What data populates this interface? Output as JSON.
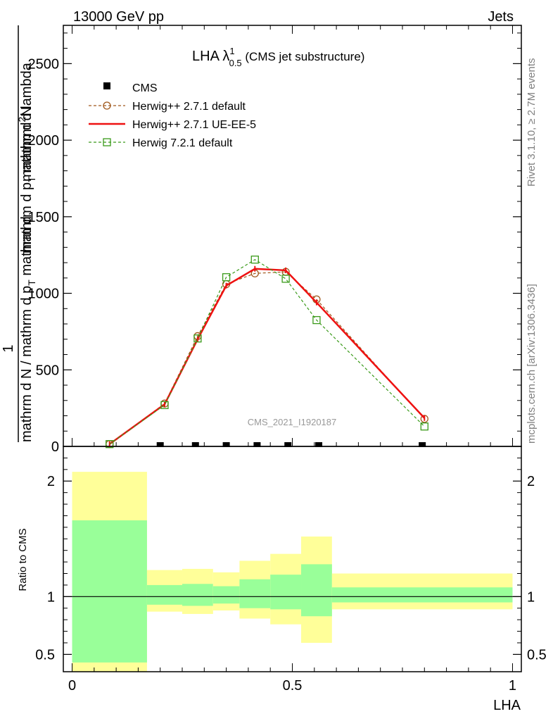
{
  "header": {
    "left": "13000 GeV pp",
    "right": "Jets"
  },
  "side": {
    "rivet": "Rivet 3.1.10, ≥ 2.7M events",
    "mcplots": "mcplots.cern.ch [arXiv:1306.3436]"
  },
  "chart_data": [
    {
      "type": "line",
      "title_main": "LHA λ",
      "title_sup": "1",
      "title_sub": "0.5",
      "title_rest": " (CMS jet substructure)",
      "watermark": "CMS_2021_I1920187",
      "ylabel_top": "1",
      "ylabel_mid": "mathrm d N / mathrm d p",
      "ylabel_mid_sub": "T",
      "ylabel_mid2": " mathrm d",
      "ylabel_bottom": "mathrm d",
      "ylabel_bottom_sup": "2",
      "ylabel_bottom2": "N",
      "ylabel_frac": "mathrm d p",
      "ylabel_frac_sub": "T",
      "ylabel_frac2": " mathrm d lambda",
      "xlim": [
        -0.02,
        1.02
      ],
      "ylim": [
        0,
        2750
      ],
      "y_ticks": [
        0,
        500,
        1000,
        1500,
        2000,
        2500
      ],
      "y_tick_labels": [
        "0",
        "500",
        "1000",
        "1500",
        "2000",
        "2500"
      ],
      "legend_position": "top-left",
      "series": [
        {
          "name": "CMS",
          "style": "markers",
          "color": "#000000",
          "x": [
            0.2,
            0.28,
            0.35,
            0.42,
            0.49,
            0.56,
            0.795
          ],
          "y": [
            0,
            0,
            0,
            0,
            0,
            0,
            0
          ]
        },
        {
          "name": "Herwig++ 2.7.1 default",
          "style": "dashed-circle",
          "color": "#a0581c",
          "x": [
            0.085,
            0.21,
            0.285,
            0.35,
            0.415,
            0.485,
            0.555,
            0.8
          ],
          "y": [
            15,
            280,
            720,
            1060,
            1130,
            1140,
            960,
            180
          ]
        },
        {
          "name": "Herwig++ 2.7.1 UE-EE-5",
          "style": "solid",
          "color": "#ee1111",
          "x": [
            0.085,
            0.21,
            0.285,
            0.35,
            0.415,
            0.485,
            0.555,
            0.8
          ],
          "y": [
            15,
            275,
            700,
            1050,
            1160,
            1150,
            940,
            185
          ]
        },
        {
          "name": "Herwig 7.2.1 default",
          "style": "dashed-square",
          "color": "#3a9a1a",
          "x": [
            0.085,
            0.21,
            0.285,
            0.35,
            0.415,
            0.485,
            0.555,
            0.8
          ],
          "y": [
            15,
            270,
            705,
            1105,
            1220,
            1095,
            825,
            130
          ]
        }
      ]
    },
    {
      "type": "area",
      "ylabel": "Ratio to CMS",
      "xlabel": "LHA",
      "xlim": [
        -0.02,
        1.02
      ],
      "ylim": [
        0.35,
        2.3
      ],
      "x_ticks": [
        0,
        0.5,
        1
      ],
      "x_tick_labels": [
        "0",
        "0.5",
        "1"
      ],
      "y_ticks": [
        0.5,
        1,
        2
      ],
      "y_tick_labels": [
        "0.5",
        "1",
        "2"
      ],
      "bins": [
        {
          "x0": 0.0,
          "x1": 0.17,
          "yellow": [
            0.35,
            2.08
          ],
          "green": [
            0.43,
            1.66
          ]
        },
        {
          "x0": 0.17,
          "x1": 0.25,
          "yellow": [
            0.87,
            1.23
          ],
          "green": [
            0.93,
            1.1
          ]
        },
        {
          "x0": 0.25,
          "x1": 0.32,
          "yellow": [
            0.85,
            1.24
          ],
          "green": [
            0.92,
            1.11
          ]
        },
        {
          "x0": 0.32,
          "x1": 0.38,
          "yellow": [
            0.88,
            1.21
          ],
          "green": [
            0.94,
            1.09
          ]
        },
        {
          "x0": 0.38,
          "x1": 0.45,
          "yellow": [
            0.81,
            1.31
          ],
          "green": [
            0.9,
            1.15
          ]
        },
        {
          "x0": 0.45,
          "x1": 0.52,
          "yellow": [
            0.76,
            1.37
          ],
          "green": [
            0.89,
            1.19
          ]
        },
        {
          "x0": 0.52,
          "x1": 0.59,
          "yellow": [
            0.6,
            1.52
          ],
          "green": [
            0.83,
            1.28
          ]
        },
        {
          "x0": 0.59,
          "x1": 1.0,
          "yellow": [
            0.89,
            1.2
          ],
          "green": [
            0.95,
            1.08
          ]
        }
      ],
      "colors": {
        "yellow": "#ffff99",
        "green": "#99ff99"
      }
    }
  ]
}
